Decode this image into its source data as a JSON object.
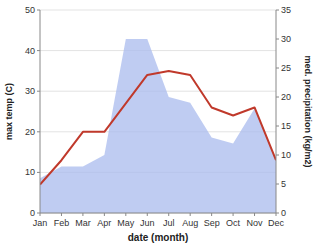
{
  "chart_data": {
    "type": "line",
    "xlabel": "date (month)",
    "ylabel": "max temp (C)",
    "y2label": "med. precipitation (kg/m2)",
    "categories": [
      "Jan",
      "Feb",
      "Mar",
      "Apr",
      "May",
      "Jun",
      "Jul",
      "Aug",
      "Sep",
      "Oct",
      "Nov",
      "Dec"
    ],
    "series": [
      {
        "type": "area",
        "axis": "y2",
        "color": "#aabbee",
        "values": [
          6,
          8,
          8,
          10,
          30,
          30,
          20,
          19,
          13,
          12,
          18,
          9
        ]
      },
      {
        "type": "line",
        "color": "#c0392b",
        "values": [
          7,
          13,
          20,
          20,
          27,
          34,
          35,
          34,
          26,
          24,
          26,
          13
        ]
      }
    ],
    "ylim": [
      0,
      50
    ],
    "yticks": [
      0,
      10,
      20,
      30,
      40,
      50
    ],
    "y2lim": [
      0,
      35
    ],
    "y2ticks": [
      0,
      5,
      10,
      15,
      20,
      25,
      30,
      35
    ],
    "grid": true
  }
}
